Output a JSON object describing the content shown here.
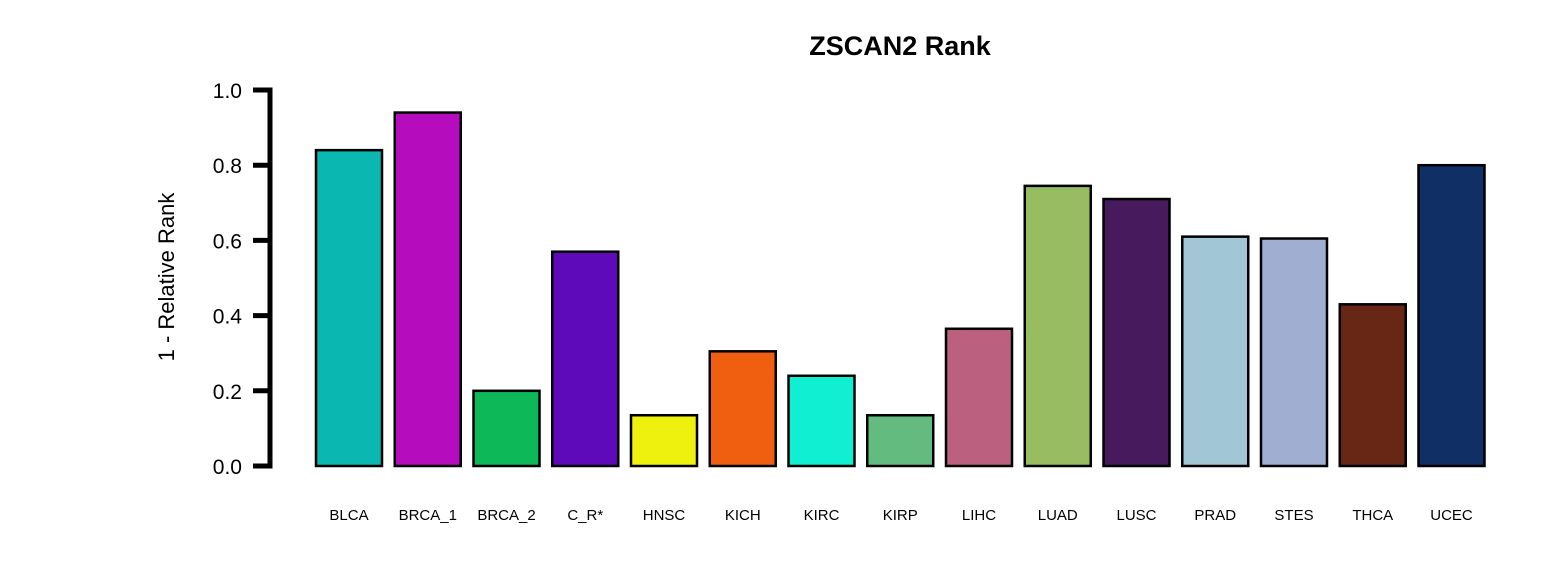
{
  "chart_data": {
    "type": "bar",
    "title": "ZSCAN2 Rank",
    "xlabel": "",
    "ylabel": "1 - Relative Rank",
    "ylim": [
      0,
      1
    ],
    "yticks": [
      "0.0",
      "0.2",
      "0.4",
      "0.6",
      "0.8",
      "1.0"
    ],
    "grid": false,
    "categories": [
      "BLCA",
      "BRCA_1",
      "BRCA_2",
      "C_R*",
      "HNSC",
      "KICH",
      "KIRC",
      "KIRP",
      "LIHC",
      "LUAD",
      "LUSC",
      "PRAD",
      "STES",
      "THCA",
      "UCEC"
    ],
    "values": [
      0.84,
      0.94,
      0.2,
      0.57,
      0.135,
      0.305,
      0.24,
      0.135,
      0.365,
      0.745,
      0.71,
      0.61,
      0.605,
      0.43,
      0.8
    ],
    "colors": [
      "#0BB8B1",
      "#B50CBD",
      "#0CB858",
      "#5E0ABA",
      "#EEF00E",
      "#F05F0F",
      "#10EFD2",
      "#64BB80",
      "#BB607F",
      "#98BC62",
      "#471A5E",
      "#A1C6D6",
      "#A0AED2",
      "#672714",
      "#0F2F65"
    ]
  }
}
